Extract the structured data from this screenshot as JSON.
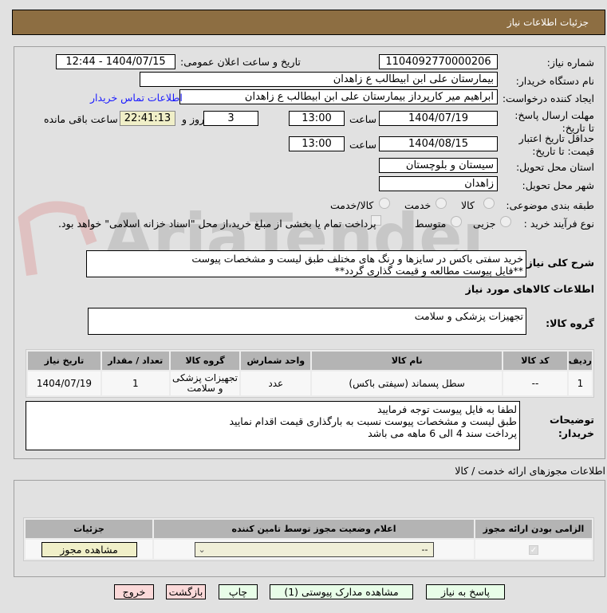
{
  "header": {
    "title": "جزئیات اطلاعات نیاز"
  },
  "form": {
    "need_number_label": "شماره نیاز:",
    "need_number": "1104092770000206",
    "announce_label": "تاریخ و ساعت اعلان عمومی:",
    "announce_value": "1404/07/15 - 12:44",
    "buyer_org_label": "نام دستگاه خریدار:",
    "buyer_org": "بیمارستان علی ابن ابیطالب  ع  زاهدان",
    "creator_label": "ایجاد کننده درخواست:",
    "creator": "ابراهیم میر کارپرداز بیمارستان علی ابن ابیطالب  ع  زاهدان",
    "contact_link": "اطلاعات تماس خریدار",
    "deadline_label": "مهلت ارسال پاسخ: تا تاریخ:",
    "deadline_date": "1404/07/19",
    "time_label": "ساعت",
    "deadline_time": "13:00",
    "days": "3",
    "days_label": "روز و",
    "remaining": "22:41:13",
    "remaining_label": "ساعت باقی مانده",
    "validity_label": "حداقل تاریخ اعتبار قیمت: تا تاریخ:",
    "validity_date": "1404/08/15",
    "validity_time": "13:00",
    "province_label": "استان محل تحویل:",
    "province": "سیستان و بلوچستان",
    "city_label": "شهر محل تحویل:",
    "city": "زاهدان",
    "category_label": "طبقه بندی موضوعی:",
    "category_options": [
      "کالا",
      "خدمت",
      "کالا/خدمت"
    ],
    "category_selected": "کالا",
    "process_label": "نوع فرآیند خرید :",
    "process_options": [
      "جزیی",
      "متوسط"
    ],
    "process_selected": "متوسط",
    "payment_note": "پرداخت تمام یا بخشی از مبلغ خرید،از محل \"اسناد خزانه اسلامی\" خواهد بود.",
    "description_label": "شرح کلی نیاز:",
    "description_line1": "خرید سفتی باکس در سایزها و رنگ های مختلف طبق لیست و مشخصات پیوست",
    "description_line2": "**فایل پیوست مطالعه و قیمت گذاری گردد**",
    "goods_info_title": "اطلاعات کالاهای مورد نیاز",
    "goods_group_label": "گروه کالا:",
    "goods_group": "تجهیزات پزشکی و سلامت"
  },
  "items_table": {
    "headers": [
      "ردیف",
      "کد کالا",
      "نام کالا",
      "واحد شمارش",
      "گروه کالا",
      "تعداد / مقدار",
      "تاریخ نیاز"
    ],
    "rows": [
      [
        "1",
        "--",
        "سطل پسماند (سیفتی باکس)",
        "عدد",
        "تجهیزات پزشکی و سلامت",
        "1",
        "1404/07/19"
      ]
    ]
  },
  "buyer_notes": {
    "label": "توضیحات خریدار:",
    "lines": [
      "لطفا به فایل پیوست توجه فرمایید",
      "طبق لیست و مشخصات پیوست نسبت به بارگذاری قیمت اقدام نمایید",
      "پرداخت سند 4 الی 6 ماهه می باشد"
    ]
  },
  "permits": {
    "title": "اطلاعات مجوزهای ارائه خدمت / کالا",
    "headers": [
      "الزامی بودن ارائه مجوز",
      "اعلام وضعیت مجوز توسط تامین کننده",
      "جزئیات"
    ],
    "select_value": "--",
    "view_button": "مشاهده مجوز",
    "required_checked": true
  },
  "buttons": {
    "reply": "پاسخ به نیاز",
    "attachments": "مشاهده مدارک پیوستی (1)",
    "print": "چاپ",
    "back": "بازگشت",
    "exit": "خروج"
  },
  "watermark": "AriaTender.net",
  "colors": {
    "header": "#8d6e42",
    "countdown": "#f0efc8",
    "link": "#1a1aff",
    "reply_btn": "#e8fde8",
    "exit_btn": "#fbd9d9",
    "input_yellow": "#f0efd8"
  }
}
